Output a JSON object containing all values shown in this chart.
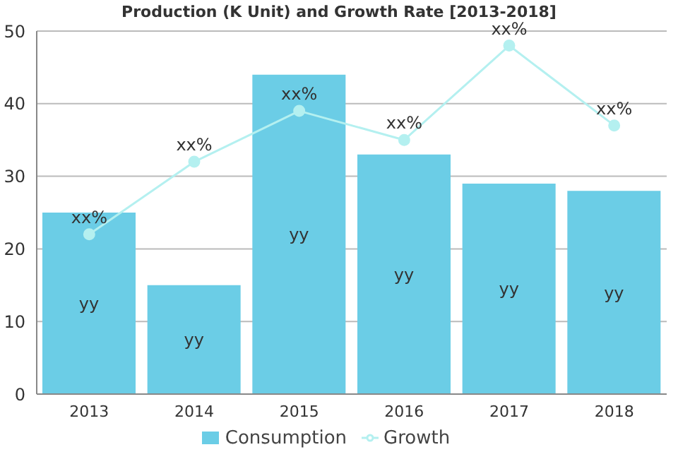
{
  "chart_data": {
    "type": "bar",
    "title": "Production (K Unit) and Growth Rate [2013-2018]",
    "categories": [
      "2013",
      "2014",
      "2015",
      "2016",
      "2017",
      "2018"
    ],
    "series": [
      {
        "name": "Consumption",
        "color": "#6bcde6",
        "values": [
          25,
          15,
          44,
          33,
          29,
          28
        ],
        "value_labels": [
          "yy",
          "yy",
          "yy",
          "yy",
          "yy",
          "yy"
        ]
      },
      {
        "name": "Growth",
        "type": "line",
        "color": "#b4f0f0",
        "values": [
          22,
          32,
          39,
          35,
          48,
          37
        ],
        "value_labels": [
          "xx%",
          "xx%",
          "xx%",
          "xx%",
          "xx%",
          "xx%"
        ]
      }
    ],
    "ylim": [
      0,
      50
    ],
    "yticks": [
      0,
      10,
      20,
      30,
      40,
      50
    ],
    "grid": "y",
    "legend": "bottom",
    "marker": "circle",
    "line_style": "solid"
  }
}
